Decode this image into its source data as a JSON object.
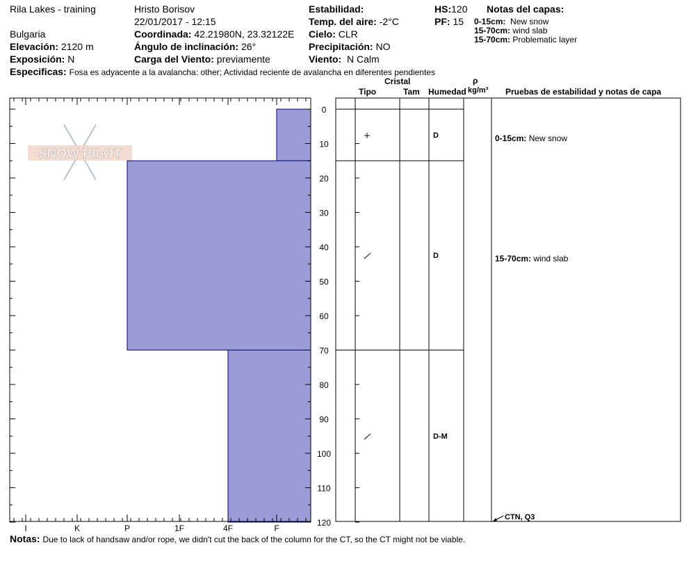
{
  "header": {
    "location": "Rila Lakes - training",
    "country": "Bulgaria",
    "elevation_label": "Elevación:",
    "elevation": "2120 m",
    "aspect_label": "Exposición:",
    "aspect": "N",
    "observer": "Hristo Borisov",
    "datetime": "22/01/2017 - 12:15",
    "coords_label": "Coordinada:",
    "coords": "42.21980N, 23.32122E",
    "slope_label": "Ángulo de inclinación:",
    "slope": "26°",
    "wind_load_label": "Carga del Viento:",
    "wind_load": "previamente",
    "stability_label": "Estabilidad:",
    "air_temp_label": "Temp. del aire:",
    "air_temp": "-2°C",
    "sky_label": "Cielo:",
    "sky": "CLR",
    "precip_label": "Precipitación:",
    "precip": "NO",
    "wind_label": "Viento:",
    "wind": "N Calm",
    "hs_label": "HS:",
    "hs": "120",
    "pf_label": "PF:",
    "pf": "15",
    "layer_notes_title": "Notas del capas:",
    "layer_notes": [
      {
        "range": "0-15cm:",
        "text": "New snow"
      },
      {
        "range": "15-70cm:",
        "text": "wind slab"
      },
      {
        "range": "15-70cm:",
        "text": "Problematic layer"
      }
    ],
    "specifics_label": "Especificas:",
    "specifics": "Fosa es adyacente a la avalancha: other; Actividad reciente de avalancha en diferentes pendientes"
  },
  "table_headers": {
    "crystal": "Cristal",
    "type": "Tipo",
    "size": "Tam",
    "moisture": "Humedad",
    "rho": "ρ",
    "density_unit": "kg/m³",
    "tests": "Pruebas de estabilidad y notas de capa"
  },
  "layers": [
    {
      "moisture": "D",
      "crystal_symbol": "+",
      "note_range": "0-15cm:",
      "note_text": "New snow"
    },
    {
      "moisture": "D",
      "crystal_symbol": "slash",
      "note_range": "15-70cm:",
      "note_text": "wind slab"
    },
    {
      "moisture": "D-M",
      "crystal_symbol": "slash"
    }
  ],
  "test_result": "CTN, Q3",
  "logo_text": "SNOW PILOT",
  "footer": {
    "notes_label": "Notas:",
    "notes": "Due to lack of handsaw and/or rope, we didn't cut the back of the column for the CT, so the CT might not be viable."
  },
  "colors": {
    "hardness_fill": "#9b9bd6",
    "hardness_stroke": "#00008b"
  },
  "chart_data": {
    "type": "bar",
    "title": "",
    "xlabel": "",
    "ylabel": "",
    "hardness_scale": [
      "I",
      "K",
      "P",
      "1F",
      "4F",
      "F"
    ],
    "depth_ticks": [
      0,
      10,
      20,
      30,
      40,
      50,
      60,
      70,
      80,
      90,
      100,
      110,
      120
    ],
    "ylim": [
      0,
      120
    ],
    "y_inverted": true,
    "grid": false,
    "layers": [
      {
        "top": 0,
        "bottom": 15,
        "hardness": "F"
      },
      {
        "top": 15,
        "bottom": 70,
        "hardness": "P"
      },
      {
        "top": 70,
        "bottom": 120,
        "hardness": "4F"
      }
    ]
  }
}
